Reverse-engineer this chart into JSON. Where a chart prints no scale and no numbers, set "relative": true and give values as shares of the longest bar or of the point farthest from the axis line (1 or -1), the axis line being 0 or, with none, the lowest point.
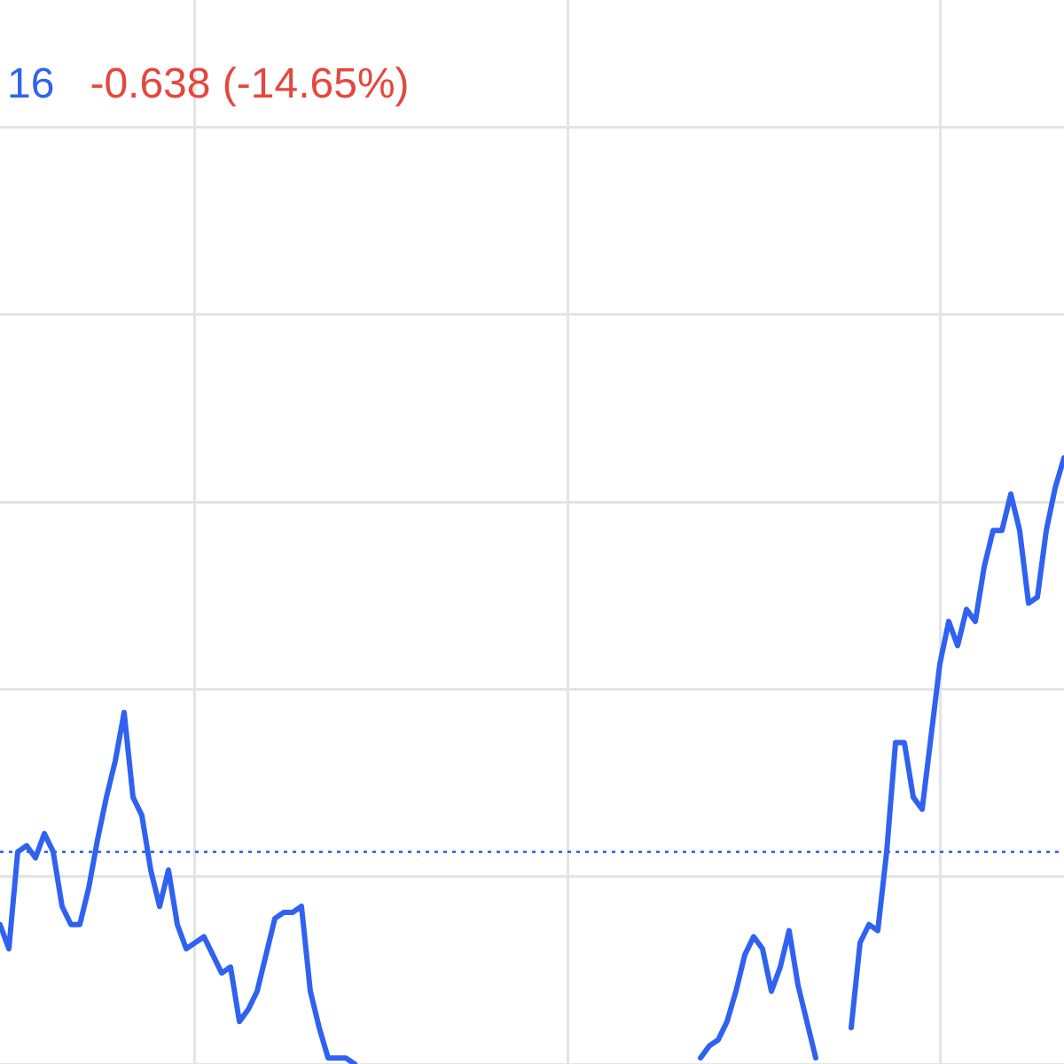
{
  "chart_data": {
    "type": "line",
    "relative": true,
    "grid": true,
    "marker": "none",
    "line_style": "solid",
    "categories": [
      null,
      null,
      null,
      null,
      null,
      null,
      null,
      null,
      null,
      null,
      null,
      null,
      null,
      null,
      null,
      null,
      null,
      null,
      null,
      null,
      null,
      null,
      null,
      null,
      null,
      null,
      null,
      null,
      null,
      null,
      null,
      null,
      null,
      null,
      null,
      null,
      null,
      null,
      null,
      null,
      null,
      null,
      null,
      null,
      null,
      null,
      null,
      null,
      null,
      null,
      null,
      null,
      null,
      null,
      null,
      null,
      null,
      null,
      null,
      null,
      null,
      null,
      null,
      null,
      null,
      null,
      null,
      null,
      null,
      null,
      null,
      null,
      null,
      null,
      null,
      null,
      null,
      null,
      null,
      null,
      null,
      null,
      null,
      null,
      null,
      null,
      null,
      null,
      null,
      null,
      null,
      null,
      null,
      null,
      null,
      null,
      null,
      null,
      null,
      null,
      null,
      null,
      null,
      null,
      null,
      null,
      null,
      null,
      null,
      null,
      null,
      null,
      null,
      null,
      null,
      null,
      null,
      null,
      null,
      null,
      null
    ],
    "series": [
      {
        "color": "#2f62f0",
        "values": [
          0.23,
          0.19,
          0.35,
          0.36,
          0.34,
          0.38,
          0.35,
          0.26,
          0.23,
          0.23,
          0.29,
          0.37,
          0.44,
          0.5,
          0.58,
          0.44,
          0.41,
          0.32,
          0.26,
          0.32,
          0.23,
          0.19,
          0.2,
          0.21,
          0.18,
          0.15,
          0.16,
          0.07,
          0.09,
          0.12,
          0.18,
          0.24,
          0.25,
          0.25,
          0.26,
          0.12,
          0.06,
          0.01,
          0.01,
          0.01,
          0,
          null,
          null,
          null,
          null,
          null,
          null,
          null,
          null,
          null,
          null,
          null,
          null,
          null,
          null,
          null,
          null,
          null,
          null,
          null,
          null,
          null,
          null,
          null,
          null,
          null,
          null,
          null,
          null,
          null,
          null,
          null,
          null,
          null,
          null,
          null,
          null,
          null,
          null,
          0.01,
          0.03,
          0.04,
          0.07,
          0.12,
          0.18,
          0.21,
          0.19,
          0.12,
          0.16,
          0.22,
          0.13,
          0.07,
          0.01,
          null,
          null,
          null,
          0.06,
          0.2,
          0.23,
          0.22,
          0.35,
          0.53,
          0.53,
          0.44,
          0.42,
          0.54,
          0.66,
          0.73,
          0.69,
          0.75,
          0.73,
          0.82,
          0.88,
          0.88,
          0.94,
          0.88,
          0.76,
          0.77,
          0.88,
          0.95,
          1
        ]
      }
    ],
    "ref_lines": [
      {
        "axis": "y",
        "value": 0.35,
        "line_style": "dotted",
        "color": "#2f62f0"
      }
    ],
    "annotations": [
      "16",
      "-0.638 (-14.65%)"
    ]
  }
}
